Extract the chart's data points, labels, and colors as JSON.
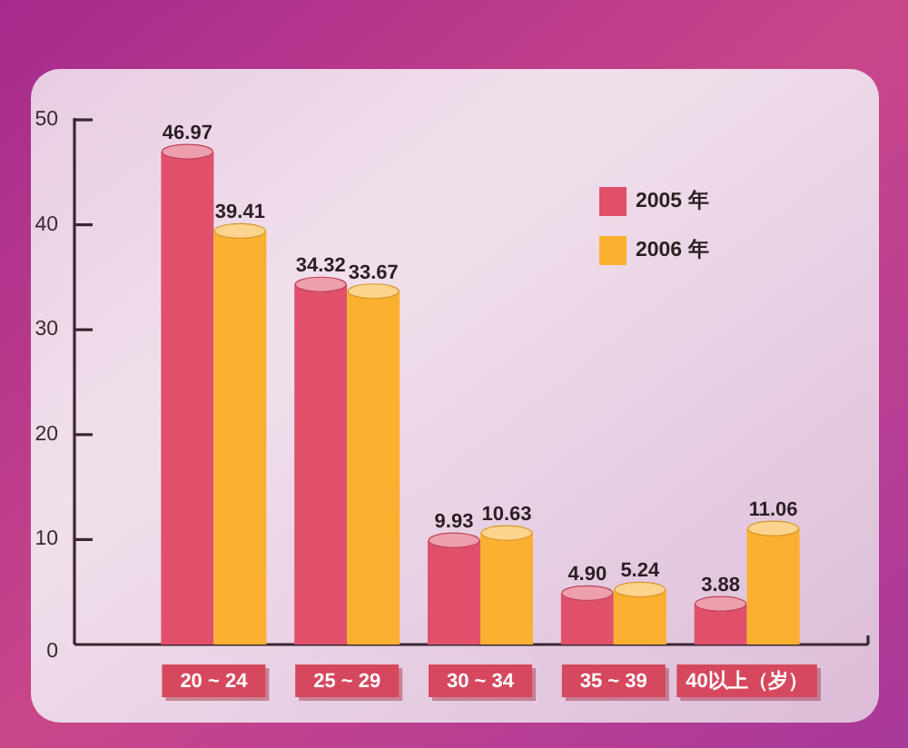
{
  "chart_data": {
    "type": "bar",
    "categories": [
      "20 ~ 24",
      "25 ~ 29",
      "30 ~ 34",
      "35 ~ 39",
      "40以上（岁）"
    ],
    "series": [
      {
        "name": "2005 年",
        "color": "#e0506a",
        "values": [
          46.97,
          34.32,
          9.93,
          4.9,
          3.88
        ],
        "value_labels": [
          "46.97",
          "34.32",
          "9.93",
          "4.90",
          "3.88"
        ]
      },
      {
        "name": "2006 年",
        "color": "#fbb030",
        "values": [
          39.41,
          33.67,
          10.63,
          5.24,
          11.06
        ],
        "value_labels": [
          "39.41",
          "33.67",
          "10.63",
          "5.24",
          "11.06"
        ]
      }
    ],
    "ylim": [
      0,
      50
    ],
    "yticks": [
      0,
      10,
      20,
      30,
      40,
      50
    ],
    "legend": "top right"
  }
}
